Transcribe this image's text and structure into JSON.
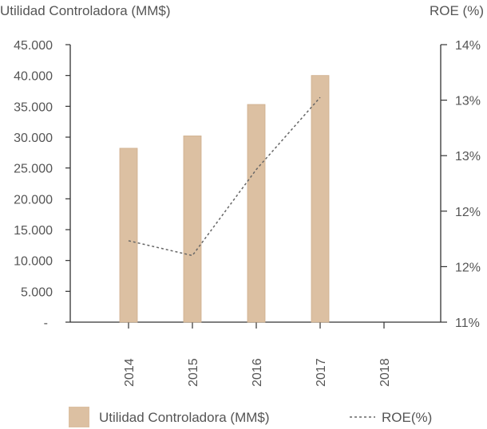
{
  "chart_data": {
    "type": "bar",
    "categories": [
      "2014",
      "2015",
      "2016",
      "2017",
      "2018"
    ],
    "ylabel": "Utilidad Controladora (MM$)",
    "y2label": "ROE (%)",
    "y_ticks": [
      "-",
      "5.000",
      "10.000",
      "15.000",
      "20.000",
      "25.000",
      "30.000",
      "35.000",
      "40.000",
      "45.000"
    ],
    "ylim": [
      0,
      45000
    ],
    "y2_ticks": [
      "11%",
      "12%",
      "12%",
      "13%",
      "13%",
      "14%"
    ],
    "y2lim": [
      11,
      14
    ],
    "legend_position": "bottom",
    "series": [
      {
        "name": "Utilidad Controladora (MM$)",
        "type": "bar",
        "axis": "left",
        "values": [
          28200,
          30200,
          35300,
          40000,
          null
        ]
      },
      {
        "name": "ROE(%)",
        "type": "line",
        "axis": "right",
        "values": [
          11.88,
          11.72,
          12.65,
          13.43,
          null
        ]
      }
    ],
    "colors": {
      "bar": "#dcc0a2",
      "bar_edge": "#cfae8d",
      "line": "#666666",
      "axis": "#333333"
    }
  }
}
